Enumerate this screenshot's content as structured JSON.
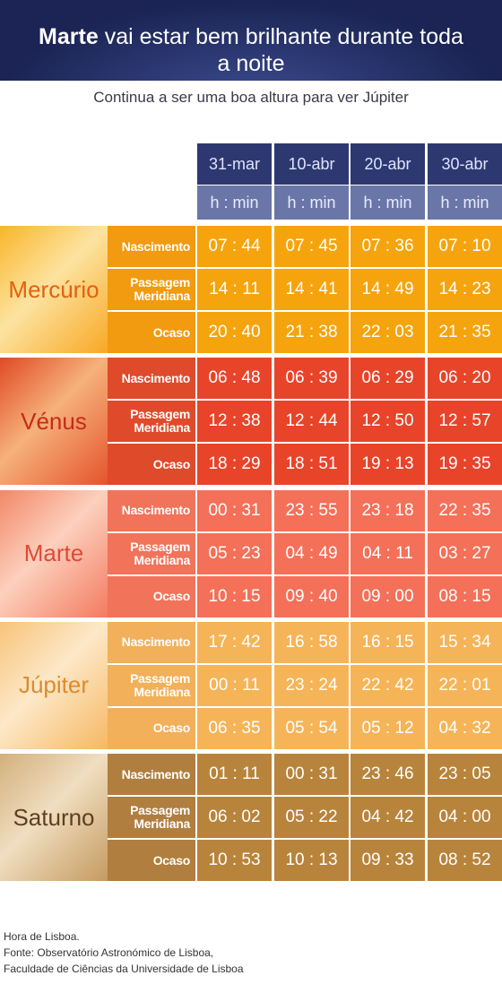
{
  "header": {
    "title_bold": "Marte",
    "title_rest": "vai estar bem brilhante durante toda a noite",
    "subtitle": "Continua a ser uma boa altura para ver Júpiter"
  },
  "table": {
    "columns": [
      "31-mar",
      "10-abr",
      "20-abr",
      "30-abr"
    ],
    "unit": "h : min",
    "row_labels": [
      "Nascimento",
      "Passagem Meridiana",
      "Ocaso"
    ],
    "planets": [
      {
        "name": "Mercúrio",
        "times": [
          [
            "07 : 44",
            "07 : 45",
            "07 : 36",
            "07 : 10"
          ],
          [
            "14 : 11",
            "14 : 41",
            "14 : 49",
            "14 : 23"
          ],
          [
            "20 : 40",
            "21 : 38",
            "22 : 03",
            "21 : 35"
          ]
        ]
      },
      {
        "name": "Vénus",
        "times": [
          [
            "06 : 48",
            "06 : 39",
            "06 : 29",
            "06 : 20"
          ],
          [
            "12 : 38",
            "12 : 44",
            "12 : 50",
            "12 : 57"
          ],
          [
            "18 : 29",
            "18 : 51",
            "19 : 13",
            "19 : 35"
          ]
        ]
      },
      {
        "name": "Marte",
        "times": [
          [
            "00 : 31",
            "23 : 55",
            "23 : 18",
            "22 : 35"
          ],
          [
            "05 : 23",
            "04 : 49",
            "04 : 11",
            "03 : 27"
          ],
          [
            "10 : 15",
            "09 : 40",
            "09 : 00",
            "08 : 15"
          ]
        ]
      },
      {
        "name": "Júpiter",
        "times": [
          [
            "17 : 42",
            "16 : 58",
            "16 : 15",
            "15 : 34"
          ],
          [
            "00 : 11",
            "23 : 24",
            "22 : 42",
            "22 : 01"
          ],
          [
            "06 : 35",
            "05 : 54",
            "05 : 12",
            "04 : 32"
          ]
        ]
      },
      {
        "name": "Saturno",
        "times": [
          [
            "01 : 11",
            "00 : 31",
            "23 : 46",
            "23 : 05"
          ],
          [
            "06 : 02",
            "05 : 22",
            "04 : 42",
            "04 : 00"
          ],
          [
            "10 : 53",
            "10 : 13",
            "09 : 33",
            "08 : 52"
          ]
        ]
      }
    ]
  },
  "footer": {
    "lines": [
      "Hora de Lisboa.",
      "Fonte: Observatório Astronómico de Lisboa,",
      "Faculdade de Ciências da Universidade de Lisboa"
    ]
  }
}
